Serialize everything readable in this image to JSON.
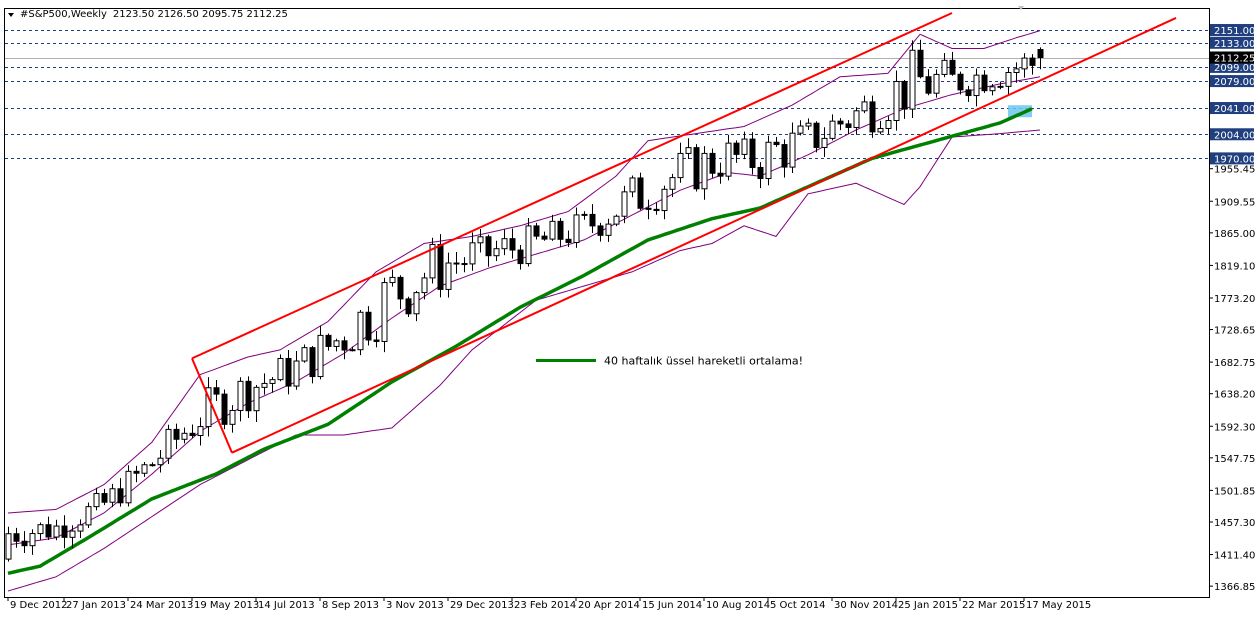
{
  "header": {
    "symbol": "#S&P500,Weekly",
    "ohlc": "2123.50 2126.50 2095.75 2112.25"
  },
  "colors": {
    "candle": "#000000",
    "bollinger": "#800080",
    "ema": "#008000",
    "trend_channel": "#ff0000",
    "level_line": "#1f3f7f",
    "price_tag_bg": "#1f3f7f",
    "current_tag_bg": "#000000",
    "highlight_box": "#6ec6f0"
  },
  "chart_data": {
    "type": "candlestick",
    "title": "#S&P500,Weekly",
    "ohlc_readout": "2123.50 2126.50 2095.75 2112.25",
    "y_range": [
      1360,
      2175
    ],
    "grid": false,
    "y_ticks": [
      "2151.00",
      "2133.00",
      "2112.25",
      "2099.00",
      "2079.00",
      "2041.00",
      "2004.00",
      "1970.00",
      "1955.45",
      "1909.55",
      "1865.00",
      "1819.10",
      "1773.20",
      "1728.65",
      "1682.75",
      "1638.20",
      "1592.30",
      "1547.75",
      "1501.85",
      "1457.30",
      "1411.40",
      "1366.85"
    ],
    "x_ticks": [
      {
        "label": "9 Dec 2012",
        "bar": 0
      },
      {
        "label": "27 Jan 2013",
        "bar": 7
      },
      {
        "label": "24 Mar 2013",
        "bar": 15
      },
      {
        "label": "19 May 2013",
        "bar": 23
      },
      {
        "label": "14 Jul 2013",
        "bar": 31
      },
      {
        "label": "8 Sep 2013",
        "bar": 39
      },
      {
        "label": "3 Nov 2013",
        "bar": 47
      },
      {
        "label": "29 Dec 2013",
        "bar": 55
      },
      {
        "label": "23 Feb 2014",
        "bar": 63
      },
      {
        "label": "20 Apr 2014",
        "bar": 71
      },
      {
        "label": "15 Jun 2014",
        "bar": 79
      },
      {
        "label": "10 Aug 2014",
        "bar": 87
      },
      {
        "label": "5 Oct 2014",
        "bar": 95
      },
      {
        "label": "30 Nov 2014",
        "bar": 103
      },
      {
        "label": "25 Jan 2015",
        "bar": 111
      },
      {
        "label": "22 Mar 2015",
        "bar": 119
      },
      {
        "label": "17 May 2015",
        "bar": 127
      }
    ],
    "horizontal_levels": [
      {
        "price": 2151.0,
        "label": "2151.00"
      },
      {
        "price": 2133.0,
        "label": "2133.00"
      },
      {
        "price": 2099.0,
        "label": "2099.00"
      },
      {
        "price": 2079.0,
        "label": "2079.00"
      },
      {
        "price": 2041.0,
        "label": "2041.00"
      },
      {
        "price": 2004.0,
        "label": "2004.00"
      },
      {
        "price": 1970.0,
        "label": "1970.00"
      }
    ],
    "current_price": {
      "price": 2112.25,
      "label": "2112.25"
    },
    "trend_lines": [
      {
        "from": {
          "bar": 23,
          "price": 1688
        },
        "to": {
          "bar": 118,
          "price": 2175
        }
      },
      {
        "from": {
          "bar": 28,
          "price": 1555
        },
        "to": {
          "bar": 146,
          "price": 2168
        }
      }
    ],
    "highlight_zone": {
      "bar_from": 125,
      "bar_to": 128,
      "price_from": 2028,
      "price_to": 2045
    },
    "annotation": {
      "text": "40 haftalık üssel hareketli ortalama!",
      "bar": 66,
      "price": 1685
    },
    "series": [
      {
        "kind": "ema",
        "period": 40,
        "points": [
          [
            0,
            1385
          ],
          [
            4,
            1395
          ],
          [
            10,
            1435
          ],
          [
            18,
            1490
          ],
          [
            26,
            1525
          ],
          [
            32,
            1560
          ],
          [
            40,
            1595
          ],
          [
            48,
            1655
          ],
          [
            56,
            1705
          ],
          [
            64,
            1760
          ],
          [
            72,
            1805
          ],
          [
            80,
            1855
          ],
          [
            88,
            1885
          ],
          [
            94,
            1900
          ],
          [
            100,
            1930
          ],
          [
            108,
            1970
          ],
          [
            116,
            1995
          ],
          [
            124,
            2020
          ],
          [
            128,
            2040
          ]
        ]
      },
      {
        "kind": "bollinger_upper",
        "points": [
          [
            0,
            1470
          ],
          [
            6,
            1475
          ],
          [
            12,
            1510
          ],
          [
            18,
            1570
          ],
          [
            24,
            1665
          ],
          [
            30,
            1690
          ],
          [
            34,
            1700
          ],
          [
            40,
            1740
          ],
          [
            46,
            1810
          ],
          [
            52,
            1850
          ],
          [
            58,
            1860
          ],
          [
            64,
            1875
          ],
          [
            70,
            1895
          ],
          [
            76,
            1945
          ],
          [
            80,
            1995
          ],
          [
            86,
            2005
          ],
          [
            92,
            2015
          ],
          [
            98,
            2045
          ],
          [
            104,
            2085
          ],
          [
            110,
            2090
          ],
          [
            114,
            2145
          ],
          [
            118,
            2125
          ],
          [
            122,
            2125
          ],
          [
            126,
            2140
          ],
          [
            129,
            2150
          ]
        ]
      },
      {
        "kind": "bollinger_middle",
        "points": [
          [
            0,
            1425
          ],
          [
            6,
            1435
          ],
          [
            12,
            1470
          ],
          [
            18,
            1525
          ],
          [
            24,
            1585
          ],
          [
            30,
            1625
          ],
          [
            36,
            1655
          ],
          [
            42,
            1695
          ],
          [
            48,
            1745
          ],
          [
            54,
            1790
          ],
          [
            60,
            1815
          ],
          [
            66,
            1835
          ],
          [
            72,
            1855
          ],
          [
            78,
            1890
          ],
          [
            84,
            1925
          ],
          [
            90,
            1950
          ],
          [
            94,
            1945
          ],
          [
            100,
            1975
          ],
          [
            106,
            2010
          ],
          [
            112,
            2040
          ],
          [
            118,
            2060
          ],
          [
            124,
            2075
          ],
          [
            129,
            2085
          ]
        ]
      },
      {
        "kind": "bollinger_lower",
        "points": [
          [
            0,
            1360
          ],
          [
            6,
            1380
          ],
          [
            12,
            1420
          ],
          [
            18,
            1465
          ],
          [
            24,
            1510
          ],
          [
            30,
            1545
          ],
          [
            36,
            1580
          ],
          [
            42,
            1580
          ],
          [
            48,
            1590
          ],
          [
            54,
            1650
          ],
          [
            58,
            1700
          ],
          [
            66,
            1770
          ],
          [
            72,
            1790
          ],
          [
            78,
            1810
          ],
          [
            84,
            1840
          ],
          [
            88,
            1850
          ],
          [
            92,
            1875
          ],
          [
            96,
            1860
          ],
          [
            100,
            1920
          ],
          [
            106,
            1935
          ],
          [
            112,
            1905
          ],
          [
            114,
            1930
          ],
          [
            118,
            2000
          ],
          [
            124,
            2005
          ],
          [
            129,
            2010
          ]
        ]
      }
    ]
  }
}
